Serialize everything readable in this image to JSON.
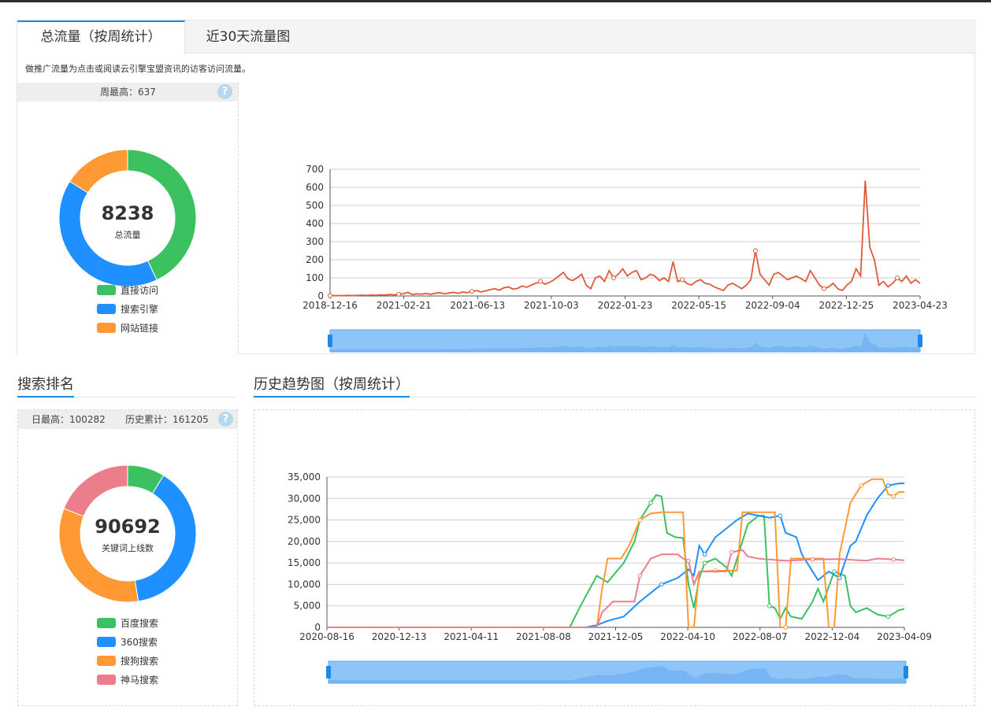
{
  "tabs": [
    {
      "label": "总流量（按周统计）",
      "active": true
    },
    {
      "label": "近30天流量图",
      "active": false
    }
  ],
  "traffic": {
    "description": "做推广流量为点击或阅读云引擎宝盟资讯的访客访问流量。",
    "weekly_max_label": "周最高：637",
    "total_value": "8238",
    "total_label": "总流量",
    "legend": [
      "直接访问",
      "搜索引擎",
      "网站链接"
    ]
  },
  "ranking": {
    "title": "搜索排名",
    "daily_max_label": "日最高：100282",
    "history_total_label": "历史累计：161205",
    "total_value": "90692",
    "total_label": "关键词上线数",
    "legend": [
      "百度搜索",
      "360搜索",
      "搜狗搜索",
      "神马搜索"
    ]
  },
  "trend": {
    "title": "历史趋势图（按周统计）"
  },
  "help_icon": "?",
  "colors": {
    "green": "#3cc160",
    "blue": "#1e90ff",
    "orange": "#ff9933",
    "pink": "#ec7d8a",
    "red": "#e05a3a",
    "accent": "#1e88e5"
  },
  "chart_data": [
    {
      "type": "pie",
      "variant": "donut",
      "center_value": "8238",
      "center_label": "总流量",
      "legend": [
        "直接访问",
        "搜索引擎",
        "网站链接"
      ],
      "values": [
        43,
        41,
        16
      ]
    },
    {
      "type": "line",
      "x_ticks": [
        "2018-12-16",
        "2021-02-21",
        "2021-06-13",
        "2021-10-03",
        "2022-01-23",
        "2022-05-15",
        "2022-09-04",
        "2022-12-25",
        "2023-04-23"
      ],
      "y_ticks": [
        "0",
        "100",
        "200",
        "300",
        "400",
        "500",
        "600",
        "700"
      ],
      "ylim": [
        0,
        700
      ],
      "series": [
        {
          "values": [
            2,
            2,
            2,
            2,
            3,
            2,
            3,
            4,
            3,
            5,
            4,
            6,
            5,
            8,
            6,
            10,
            12,
            20,
            8,
            12,
            10,
            14,
            9,
            15,
            18,
            12,
            16,
            20,
            14,
            22,
            18,
            25,
            30,
            22,
            28,
            35,
            40,
            32,
            45,
            50,
            38,
            42,
            55,
            48,
            60,
            70,
            80,
            65,
            75,
            90,
            110,
            130,
            95,
            85,
            100,
            120,
            60,
            40,
            100,
            110,
            80,
            140,
            100,
            120,
            150,
            110,
            130,
            140,
            90,
            100,
            120,
            110,
            85,
            100,
            80,
            190,
            80,
            90,
            70,
            60,
            80,
            90,
            70,
            65,
            50,
            40,
            30,
            60,
            70,
            55,
            40,
            60,
            90,
            250,
            120,
            90,
            60,
            120,
            130,
            110,
            90,
            100,
            110,
            95,
            80,
            140,
            100,
            60,
            40,
            50,
            70,
            40,
            30,
            60,
            80,
            150,
            110,
            637,
            270,
            200,
            60,
            80,
            50,
            70,
            100,
            80,
            110,
            70,
            90,
            70
          ]
        }
      ]
    },
    {
      "type": "pie",
      "variant": "donut",
      "center_value": "90692",
      "center_label": "关键词上线数",
      "legend": [
        "百度搜索",
        "360搜索",
        "搜狗搜索",
        "神马搜索"
      ],
      "values": [
        8.8,
        38.7,
        33.5,
        19
      ]
    },
    {
      "type": "line",
      "x_ticks": [
        "2020-08-16",
        "2020-12-13",
        "2021-04-11",
        "2021-08-08",
        "2021-12-05",
        "2022-04-10",
        "2022-08-07",
        "2022-12-04",
        "2023-04-09"
      ],
      "y_ticks": [
        "0",
        "5,000",
        "10,000",
        "15,000",
        "20,000",
        "25,000",
        "30,000",
        "35,000"
      ],
      "ylim": [
        0,
        35000
      ],
      "series": [
        {
          "legend": "百度搜索",
          "points": [
            [
              0,
              0
            ],
            [
              0.45,
              0
            ],
            [
              0.47,
              5000
            ],
            [
              0.5,
              12000
            ],
            [
              0.52,
              10500
            ],
            [
              0.55,
              15000
            ],
            [
              0.57,
              20000
            ],
            [
              0.58,
              25000
            ],
            [
              0.6,
              29000
            ],
            [
              0.61,
              30800
            ],
            [
              0.62,
              30500
            ],
            [
              0.63,
              22000
            ],
            [
              0.645,
              21000
            ],
            [
              0.66,
              20800
            ],
            [
              0.67,
              10000
            ],
            [
              0.68,
              4500
            ],
            [
              0.69,
              11500
            ],
            [
              0.7,
              15000
            ],
            [
              0.72,
              16000
            ],
            [
              0.74,
              14000
            ],
            [
              0.75,
              12000
            ],
            [
              0.77,
              20000
            ],
            [
              0.78,
              24000
            ],
            [
              0.8,
              26000
            ],
            [
              0.81,
              26000
            ],
            [
              0.82,
              5000
            ],
            [
              0.83,
              4500
            ],
            [
              0.84,
              2000
            ],
            [
              0.85,
              4500
            ],
            [
              0.86,
              2500
            ],
            [
              0.88,
              2000
            ],
            [
              0.9,
              6000
            ],
            [
              0.91,
              9000
            ],
            [
              0.92,
              6000
            ],
            [
              0.94,
              13000
            ],
            [
              0.96,
              12000
            ],
            [
              0.97,
              5000
            ],
            [
              0.98,
              3500
            ],
            [
              1.0,
              4500
            ],
            [
              1.02,
              3000
            ],
            [
              1.04,
              2500
            ],
            [
              1.06,
              4000
            ],
            [
              1.07,
              4300
            ]
          ]
        },
        {
          "legend": "360搜索",
          "points": [
            [
              0,
              0
            ],
            [
              0.48,
              0
            ],
            [
              0.5,
              500
            ],
            [
              0.52,
              1500
            ],
            [
              0.55,
              2500
            ],
            [
              0.58,
              6000
            ],
            [
              0.6,
              8000
            ],
            [
              0.62,
              10000
            ],
            [
              0.64,
              11000
            ],
            [
              0.65,
              11500
            ],
            [
              0.66,
              12500
            ],
            [
              0.67,
              13500
            ],
            [
              0.68,
              12000
            ],
            [
              0.69,
              19000
            ],
            [
              0.7,
              17000
            ],
            [
              0.72,
              21000
            ],
            [
              0.74,
              23000
            ],
            [
              0.76,
              25000
            ],
            [
              0.78,
              26500
            ],
            [
              0.8,
              26000
            ],
            [
              0.82,
              25500
            ],
            [
              0.84,
              26000
            ],
            [
              0.85,
              22000
            ],
            [
              0.87,
              21000
            ],
            [
              0.88,
              17000
            ],
            [
              0.9,
              13000
            ],
            [
              0.91,
              11000
            ],
            [
              0.93,
              13000
            ],
            [
              0.95,
              11500
            ],
            [
              0.97,
              19000
            ],
            [
              0.98,
              20000
            ],
            [
              1.0,
              26000
            ],
            [
              1.02,
              30000
            ],
            [
              1.04,
              33000
            ],
            [
              1.06,
              33500
            ],
            [
              1.07,
              33500
            ]
          ]
        },
        {
          "legend": "搜狗搜索",
          "points": [
            [
              0,
              0
            ],
            [
              0.5,
              0
            ],
            [
              0.51,
              9000
            ],
            [
              0.52,
              16000
            ],
            [
              0.545,
              16000
            ],
            [
              0.56,
              19000
            ],
            [
              0.58,
              25000
            ],
            [
              0.6,
              26500
            ],
            [
              0.62,
              26800
            ],
            [
              0.66,
              26800
            ],
            [
              0.67,
              0
            ],
            [
              0.68,
              0
            ],
            [
              0.69,
              13000
            ],
            [
              0.72,
              13200
            ],
            [
              0.76,
              13200
            ],
            [
              0.77,
              26800
            ],
            [
              0.8,
              26800
            ],
            [
              0.83,
              26800
            ],
            [
              0.84,
              0
            ],
            [
              0.85,
              0
            ],
            [
              0.86,
              16000
            ],
            [
              0.92,
              16000
            ],
            [
              0.93,
              0
            ],
            [
              0.94,
              0
            ],
            [
              0.95,
              17000
            ],
            [
              0.97,
              29000
            ],
            [
              0.99,
              33000
            ],
            [
              1.01,
              34500
            ],
            [
              1.03,
              34500
            ],
            [
              1.04,
              31000
            ],
            [
              1.05,
              30500
            ],
            [
              1.06,
              31500
            ],
            [
              1.07,
              31500
            ]
          ]
        },
        {
          "legend": "神马搜索",
          "points": [
            [
              0,
              0
            ],
            [
              0.5,
              0
            ],
            [
              0.51,
              3500
            ],
            [
              0.53,
              6000
            ],
            [
              0.57,
              6000
            ],
            [
              0.58,
              12000
            ],
            [
              0.6,
              16000
            ],
            [
              0.62,
              17000
            ],
            [
              0.65,
              17000
            ],
            [
              0.66,
              16000
            ],
            [
              0.67,
              15500
            ],
            [
              0.68,
              10000
            ],
            [
              0.69,
              13000
            ],
            [
              0.74,
              13000
            ],
            [
              0.75,
              17500
            ],
            [
              0.77,
              18000
            ],
            [
              0.78,
              16500
            ],
            [
              0.8,
              16000
            ],
            [
              0.85,
              15500
            ],
            [
              0.9,
              15800
            ],
            [
              0.95,
              15900
            ],
            [
              1.0,
              15500
            ],
            [
              1.02,
              16000
            ],
            [
              1.05,
              15800
            ],
            [
              1.07,
              15600
            ]
          ]
        }
      ]
    }
  ]
}
